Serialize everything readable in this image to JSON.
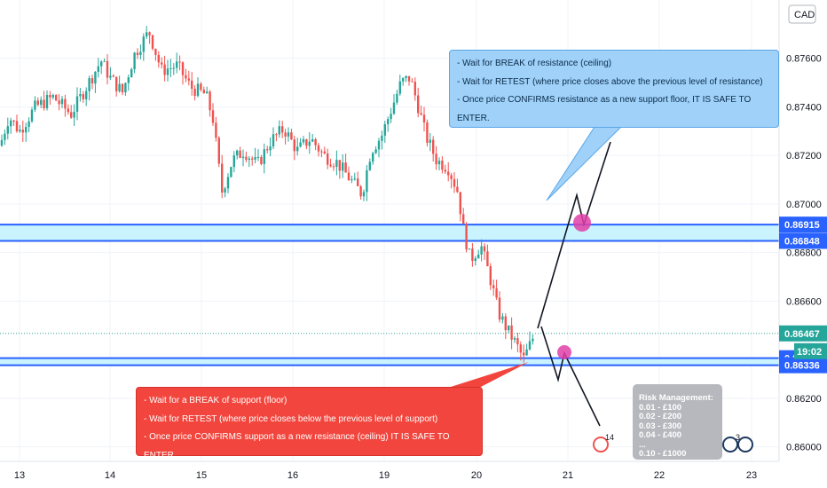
{
  "currency": "CAD",
  "clock": "19:02",
  "chart_data": {
    "type": "candlestick",
    "x_ticks": [
      "13",
      "14",
      "15",
      "16",
      "19",
      "20",
      "21",
      "22",
      "23"
    ],
    "y_ticks": [
      0.876,
      0.874,
      0.872,
      0.87,
      0.868,
      0.866,
      0.862,
      0.86
    ],
    "y_tick_labels": [
      "0.87600",
      "0.87400",
      "0.87200",
      "0.87000",
      "0.86800",
      "0.86600",
      "0.86200",
      "0.86000"
    ],
    "ylim": [
      0.8594,
      0.8784
    ],
    "price_tags": [
      {
        "label": "0.86915",
        "value": 0.86915,
        "color": "#2962ff"
      },
      {
        "label": "0.86848",
        "value": 0.86848,
        "color": "#2962ff"
      },
      {
        "label": "0.86467",
        "value": 0.86467,
        "color": "#26a69a"
      },
      {
        "label": "0.86365",
        "value": 0.86365,
        "color": "#2962ff"
      },
      {
        "label": "0.86336",
        "value": 0.86336,
        "color": "#2962ff"
      }
    ],
    "resistance_zone": [
      0.86848,
      0.86915
    ],
    "support_zone": [
      0.86336,
      0.86365
    ],
    "last_price": 0.86467,
    "zone_color": "#2962ff",
    "fill_color": "#c9f3ff",
    "up_color": "#26a69a",
    "down_color": "#ef5350"
  },
  "callouts": {
    "resistance": [
      "- Wait for BREAK of resistance (ceiling)",
      "- Wait for RETEST (where price closes above the previous level of resistance)",
      "- Once price CONFIRMS resistance as a new support floor, IT IS SAFE TO ENTER."
    ],
    "support": [
      "- Wait for a BREAK of support (floor)",
      "- Wait for RETEST (where price closes below the previous level of support)",
      "- Once price CONFIRMS support as a new resistance (ceiling) IT IS SAFE TO ENTER."
    ]
  },
  "risk_management": {
    "title": "Risk Management:",
    "lines": [
      "0.01 - £100",
      "0.02 - £200",
      "0.03 - £300",
      "0.04 - £400",
      "...",
      "0.10 - £1000"
    ]
  },
  "badges": {
    "events_count": "14",
    "ideas_count": "3"
  }
}
